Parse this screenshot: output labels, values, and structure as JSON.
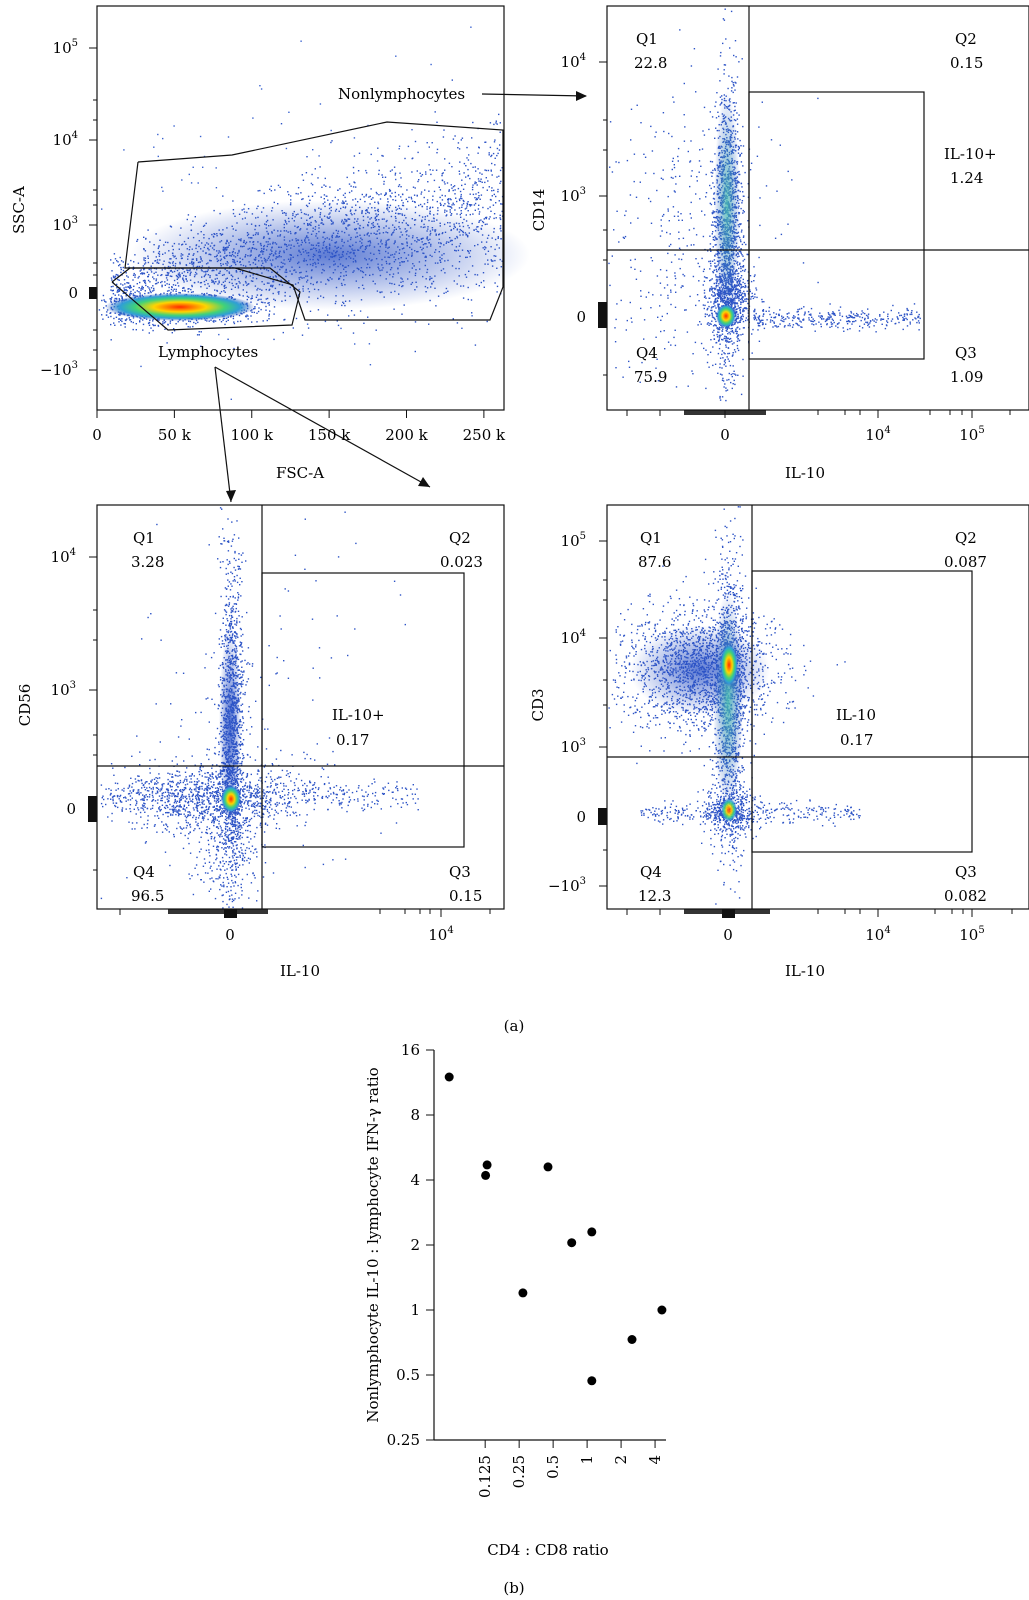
{
  "panel_labels": {
    "a": "(a)",
    "b": "(b)"
  },
  "chart_data": [
    {
      "id": "gating",
      "type": "scatter",
      "xlabel": "FSC-A",
      "ylabel": "SSC-A",
      "x_ticks": [
        "0",
        "50 k",
        "100 k",
        "150 k",
        "200 k",
        "250 k"
      ],
      "x_tick_values": [
        0,
        50000,
        100000,
        150000,
        200000,
        250000
      ],
      "y_ticks": [
        "−10^3",
        "0",
        "10^3",
        "10^4",
        "10^5"
      ],
      "gates": [
        {
          "name": "Nonlymphocytes",
          "target": "CD14 vs IL-10"
        },
        {
          "name": "Lymphocytes",
          "target": [
            "CD56 vs IL-10",
            "CD3 vs IL-10"
          ]
        }
      ]
    },
    {
      "id": "cd14",
      "type": "scatter",
      "xlabel": "IL-10",
      "ylabel": "CD14",
      "x_ticks": [
        "0",
        "10^4",
        "10^5"
      ],
      "y_ticks": [
        "0",
        "10^3",
        "10^4"
      ],
      "quadrants": {
        "Q1": "22.8",
        "Q2": "0.15",
        "Q3": "1.09",
        "Q4": "75.9"
      },
      "gate": {
        "label": "IL-10+",
        "value": "1.24"
      }
    },
    {
      "id": "cd56",
      "type": "scatter",
      "xlabel": "IL-10",
      "ylabel": "CD56",
      "x_ticks": [
        "0",
        "10^4"
      ],
      "y_ticks": [
        "0",
        "10^3",
        "10^4"
      ],
      "quadrants": {
        "Q1": "3.28",
        "Q2": "0.023",
        "Q3": "0.15",
        "Q4": "96.5"
      },
      "gate": {
        "label": "IL-10+",
        "value": "0.17"
      }
    },
    {
      "id": "cd3",
      "type": "scatter",
      "xlabel": "IL-10",
      "ylabel": "CD3",
      "x_ticks": [
        "0",
        "10^4",
        "10^5"
      ],
      "y_ticks": [
        "−10^3",
        "0",
        "10^3",
        "10^4",
        "10^5"
      ],
      "quadrants": {
        "Q1": "87.6",
        "Q2": "0.087",
        "Q3": "0.082",
        "Q4": "12.3"
      },
      "gate": {
        "label": "IL-10",
        "value": "0.17"
      }
    },
    {
      "id": "ratio",
      "type": "scatter",
      "xlabel": "CD4 : CD8 ratio",
      "ylabel": "Nonlymphocyte IL-10 : lymphocyte IFN-γ ratio",
      "x_scale": "log2",
      "y_scale": "log2",
      "x_ticks": [
        "0.125",
        "0.25",
        "0.5",
        "1",
        "2",
        "4"
      ],
      "x_tick_values": [
        0.125,
        0.25,
        0.5,
        1,
        2,
        4
      ],
      "y_ticks": [
        "0.25",
        "0.5",
        "1",
        "2",
        "4",
        "8",
        "16"
      ],
      "y_tick_values": [
        0.25,
        0.5,
        1,
        2,
        4,
        8,
        16
      ],
      "xlim": [
        0.044,
        5.0
      ],
      "ylim": [
        0.25,
        16
      ],
      "points": [
        {
          "x": 0.06,
          "y": 12.0
        },
        {
          "x": 0.126,
          "y": 4.2
        },
        {
          "x": 0.13,
          "y": 4.7
        },
        {
          "x": 0.27,
          "y": 1.2
        },
        {
          "x": 0.45,
          "y": 4.6
        },
        {
          "x": 0.73,
          "y": 2.05
        },
        {
          "x": 1.1,
          "y": 2.3
        },
        {
          "x": 1.1,
          "y": 0.47
        },
        {
          "x": 2.5,
          "y": 0.73
        },
        {
          "x": 4.6,
          "y": 1.0
        }
      ]
    }
  ]
}
